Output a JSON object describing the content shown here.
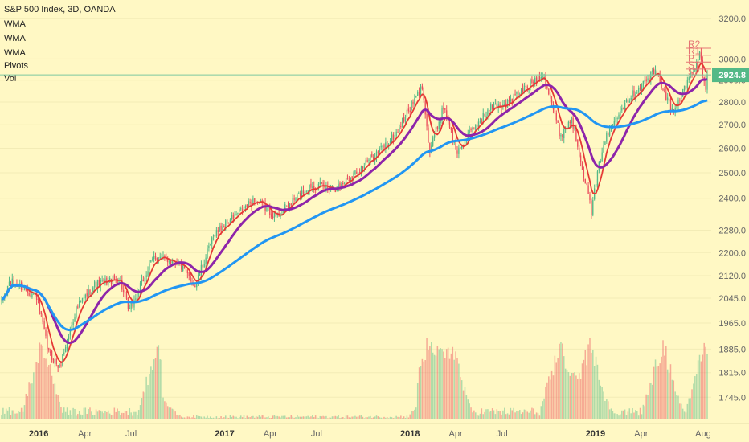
{
  "legend": {
    "title": "S&P 500 Index, 3D, OANDA",
    "studies": [
      "WMA",
      "WMA",
      "WMA",
      "Pivots",
      "Vol"
    ]
  },
  "last_price": "2924.8",
  "colors": {
    "background": "#fff8c4",
    "up": "#53b987",
    "down": "#eb4d5c",
    "wma_fast": "#e53935",
    "wma_mid": "#8e24aa",
    "wma_slow": "#2196f3",
    "pivot_line": "#e57373",
    "price_line": "#7cc8a0",
    "price_label_bg": "#53b987"
  },
  "chart_data": {
    "type": "candlestick",
    "title": "S&P 500 Index, 3D, OANDA",
    "x_axis": {
      "ticks": [
        "2016",
        "Apr",
        "Jul",
        "2017",
        "Apr",
        "Jul",
        "2018",
        "Apr",
        "Jul",
        "2019",
        "Apr",
        "Aug"
      ]
    },
    "y_axis": {
      "scale": "log",
      "ticks": [
        "3200.0",
        "3000.0",
        "2900.0",
        "2800.0",
        "2700.0",
        "2600.0",
        "2500.0",
        "2400.0",
        "2280.0",
        "2200.0",
        "2120.0",
        "2045.0",
        "1965.0",
        "1885.0",
        "1815.0",
        "1745.0"
      ],
      "range": [
        1710,
        3230
      ]
    },
    "price_anchors": [
      {
        "date": "2015-10-20",
        "close": 2030
      },
      {
        "date": "2015-11-05",
        "close": 2100
      },
      {
        "date": "2015-12-01",
        "close": 2080
      },
      {
        "date": "2015-12-28",
        "close": 2050
      },
      {
        "date": "2016-01-20",
        "close": 1875
      },
      {
        "date": "2016-02-11",
        "close": 1829
      },
      {
        "date": "2016-03-15",
        "close": 2010
      },
      {
        "date": "2016-04-20",
        "close": 2090
      },
      {
        "date": "2016-06-08",
        "close": 2110
      },
      {
        "date": "2016-06-27",
        "close": 2000
      },
      {
        "date": "2016-08-15",
        "close": 2185
      },
      {
        "date": "2016-09-30",
        "close": 2168
      },
      {
        "date": "2016-11-04",
        "close": 2085
      },
      {
        "date": "2016-12-13",
        "close": 2270
      },
      {
        "date": "2017-03-01",
        "close": 2395
      },
      {
        "date": "2017-04-13",
        "close": 2330
      },
      {
        "date": "2017-06-19",
        "close": 2450
      },
      {
        "date": "2017-08-10",
        "close": 2440
      },
      {
        "date": "2017-10-02",
        "close": 2530
      },
      {
        "date": "2017-12-01",
        "close": 2650
      },
      {
        "date": "2018-01-26",
        "close": 2872
      },
      {
        "date": "2018-02-08",
        "close": 2581
      },
      {
        "date": "2018-03-09",
        "close": 2785
      },
      {
        "date": "2018-04-02",
        "close": 2580
      },
      {
        "date": "2018-05-15",
        "close": 2710
      },
      {
        "date": "2018-06-12",
        "close": 2780
      },
      {
        "date": "2018-07-10",
        "close": 2790
      },
      {
        "date": "2018-09-20",
        "close": 2935
      },
      {
        "date": "2018-10-24",
        "close": 2650
      },
      {
        "date": "2018-11-15",
        "close": 2730
      },
      {
        "date": "2018-12-24",
        "close": 2351
      },
      {
        "date": "2019-01-15",
        "close": 2610
      },
      {
        "date": "2019-02-20",
        "close": 2780
      },
      {
        "date": "2019-04-30",
        "close": 2945
      },
      {
        "date": "2019-06-03",
        "close": 2745
      },
      {
        "date": "2019-07-26",
        "close": 3025
      },
      {
        "date": "2019-08-05",
        "close": 2845
      },
      {
        "date": "2019-08-09",
        "close": 2924.8
      }
    ],
    "volume_spike_dates": [
      "2016-01-08",
      "2016-08-24",
      "2018-02-06",
      "2018-03-23",
      "2018-10-24",
      "2018-12-21",
      "2019-05-13",
      "2019-08-05"
    ],
    "moving_averages": [
      {
        "name": "WMA",
        "period": 10,
        "color": "#e53935"
      },
      {
        "name": "WMA",
        "period": 30,
        "color": "#8e24aa"
      },
      {
        "name": "WMA",
        "period": 120,
        "color": "#2196f3"
      }
    ],
    "pivots": [
      {
        "label": "R2",
        "value": 3052
      },
      {
        "label": "R1",
        "value": 3018
      },
      {
        "label": "P",
        "value": 2985
      },
      {
        "label": "S1",
        "value": 2952
      },
      {
        "label": "S2",
        "value": 2920
      }
    ],
    "current_price": 2924.8
  }
}
